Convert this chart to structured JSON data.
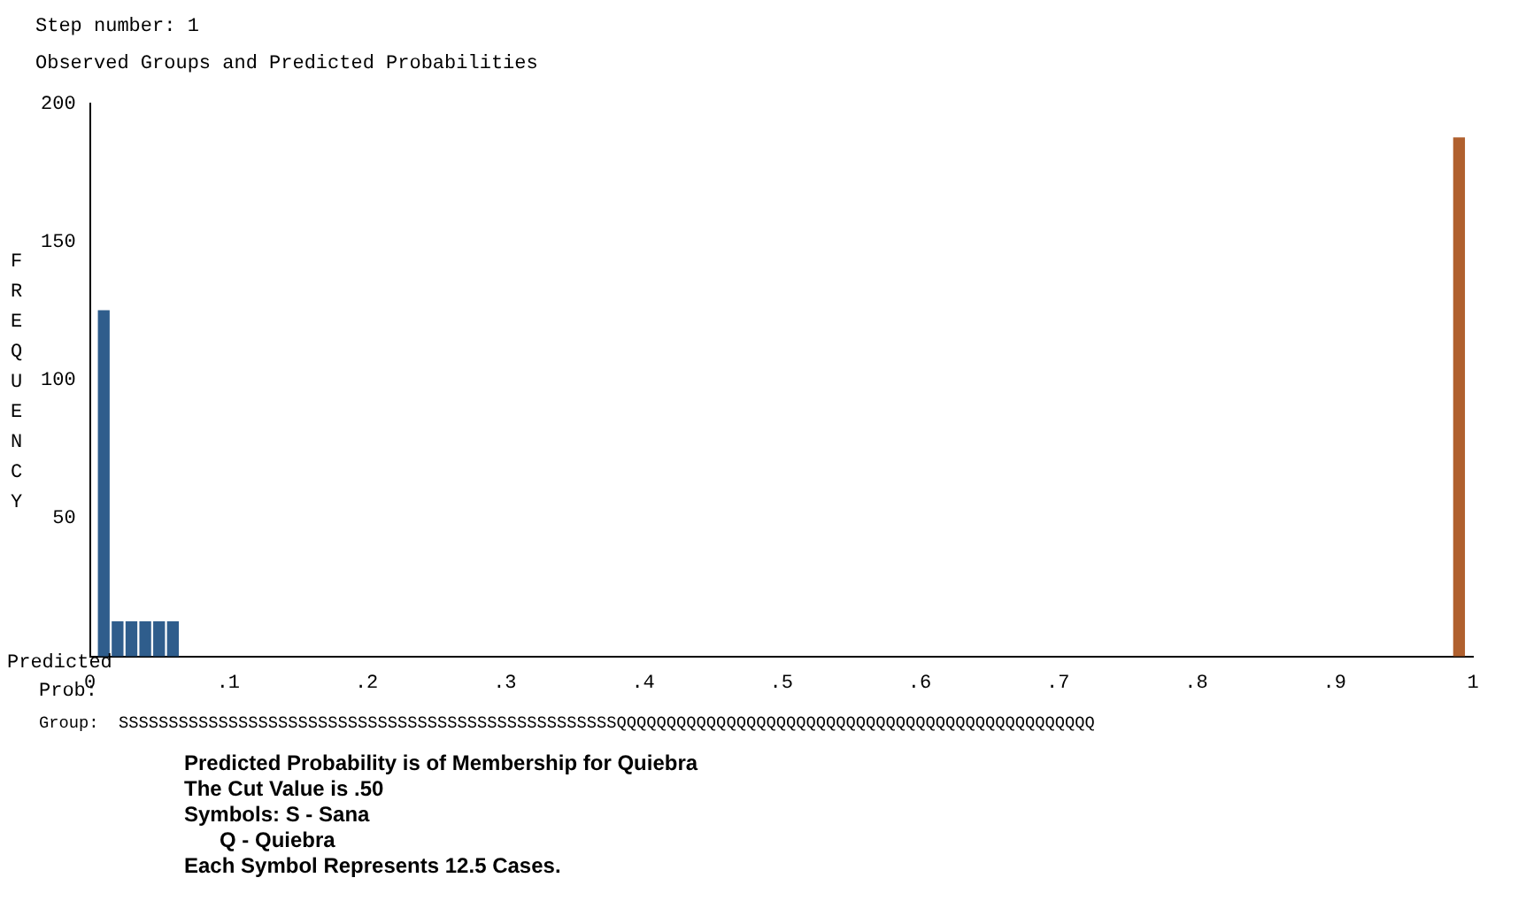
{
  "chart_data": {
    "type": "bar",
    "title": "Step number: 1",
    "subtitle": "Observed Groups and Predicted Probabilities",
    "xlabel": "Predicted Prob:",
    "ylabel": "FREQUENCY",
    "series": [
      {
        "color": "#2f5d8c",
        "x": [
          0.01,
          0.02,
          0.03,
          0.04,
          0.05,
          0.06
        ],
        "values": [
          125,
          12.5,
          12.5,
          12.5,
          12.5,
          12.5
        ]
      },
      {
        "color": "#b0602e",
        "x": [
          0.99
        ],
        "values": [
          187.5
        ]
      }
    ],
    "xlim": [
      0,
      1
    ],
    "xticks": [
      0,
      {
        "value": 0.1,
        "label": ".1"
      },
      {
        "value": 0.2,
        "label": ".2"
      },
      {
        "value": 0.3,
        "label": ".3"
      },
      {
        "value": 0.4,
        "label": ".4"
      },
      {
        "value": 0.5,
        "label": ".5"
      },
      {
        "value": 0.6,
        "label": ".6"
      },
      {
        "value": 0.7,
        "label": ".7"
      },
      {
        "value": 0.8,
        "label": ".8"
      },
      {
        "value": 0.9,
        "label": ".9"
      },
      1
    ],
    "ylim": [
      0,
      200
    ],
    "yticks": [
      50,
      100,
      150,
      200
    ],
    "grid": false,
    "legend": false,
    "annotations": [
      "Group:  SSSSSSSSSSSSSSSSSSSSSSSSSSSSSSSSSSSSSSSSSSSSSSSSSSQQQQQQQQQQQQQQQQQQQQQQQQQQQQQQQQQQQQQQQQQQQQQQQQ",
      "Predicted Probability is of Membership for Quiebra",
      "The Cut Value is .50",
      "Symbols: S - Sana",
      "      Q - Quiebra",
      "Each Symbol Represents 12.5 Cases."
    ]
  }
}
